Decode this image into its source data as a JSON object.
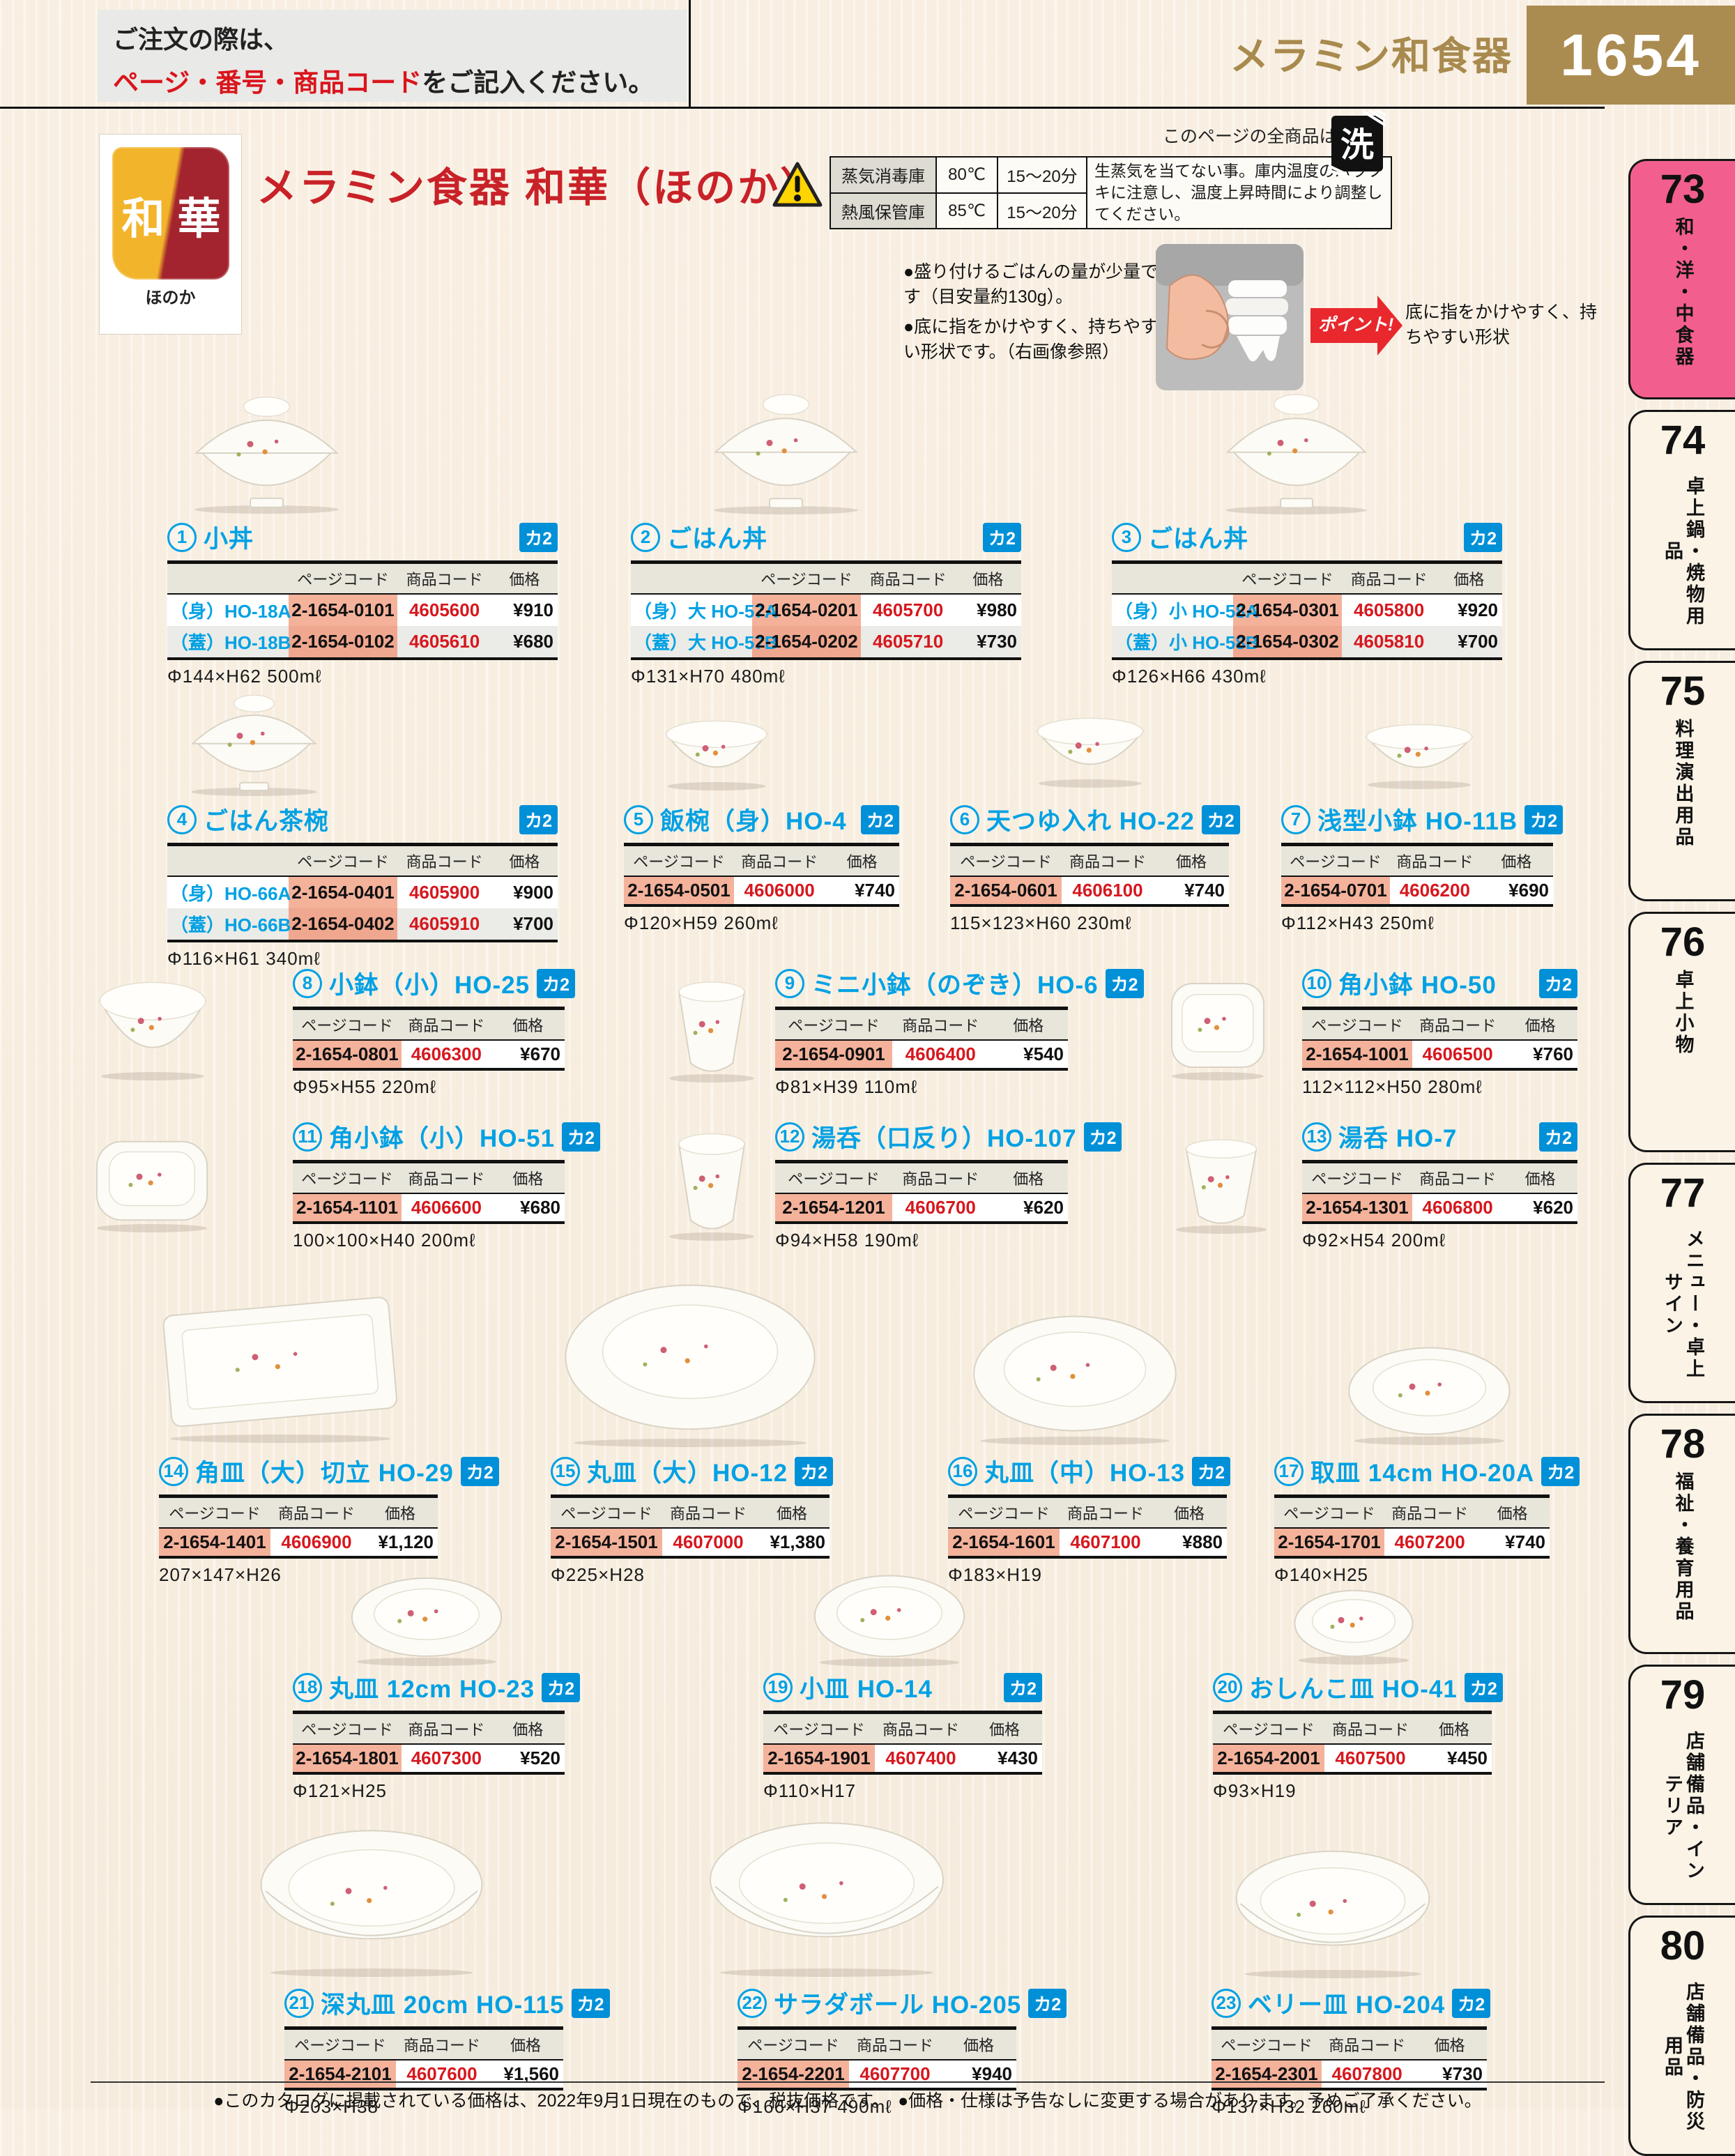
{
  "page": {
    "order_note_line1": "ご注文の際は、",
    "order_note_red": "ページ・番号・商品コード",
    "order_note_suffix": "をご記入ください。",
    "category_title": "メラミン和食器",
    "page_number": "1654",
    "all_products_note": "このページの全商品は",
    "wash_icon_label": "洗"
  },
  "header": {
    "brand_logo": {
      "kanji1": "和",
      "kanji2": "華",
      "sub": "ほのか"
    },
    "series_title": "メラミン食器 和華（ほのか）",
    "warning_mark": "!",
    "care_table": {
      "rows": [
        {
          "label": "蒸気消毒庫",
          "temp": "80℃",
          "time": "15〜20分"
        },
        {
          "label": "熱風保管庫",
          "temp": "85℃",
          "time": "15〜20分"
        }
      ],
      "note": "生蒸気を当てない事。庫内温度のバラツキに注意し、温度上昇時間により調整してください。"
    },
    "bullets": [
      "●盛り付けるごはんの量が少量です（目安量約130g）。",
      "●底に指をかけやすく、持ちやすい形状です。（右画像参照）"
    ],
    "point_label": "ポイント!",
    "point_text": "底に指をかけやすく、持ちやすい形状"
  },
  "sidebar": [
    {
      "number": "73",
      "label": "和・洋・中食器",
      "active": true
    },
    {
      "number": "74",
      "label": "卓上鍋・焼物用品",
      "active": false
    },
    {
      "number": "75",
      "label": "料理演出用品",
      "active": false
    },
    {
      "number": "76",
      "label": "卓上小物",
      "active": false
    },
    {
      "number": "77",
      "label": "メニュー・卓上サイン",
      "active": false
    },
    {
      "number": "78",
      "label": "福祉・養育用品",
      "active": false
    },
    {
      "number": "79",
      "label": "店舗備品・インテリア",
      "active": false
    },
    {
      "number": "80",
      "label": "店舗備品・防災用品",
      "active": false
    }
  ],
  "table_headers": {
    "page_code": "ページコード",
    "item_code": "商品コード",
    "price": "価格"
  },
  "badge": "カ2",
  "products": [
    {
      "number": "1",
      "name": "小丼",
      "rows": [
        {
          "variant": "（身）HO-18A",
          "page_code": "2-1654-0101",
          "item_code": "4605600",
          "price": "¥910"
        },
        {
          "variant": "（蓋）HO-18B",
          "page_code": "2-1654-0102",
          "item_code": "4605610",
          "price": "¥680"
        }
      ],
      "dims": "Φ144×H62 500mℓ"
    },
    {
      "number": "2",
      "name": "ごはん丼",
      "rows": [
        {
          "variant": "（身）大 HO-57A",
          "page_code": "2-1654-0201",
          "item_code": "4605700",
          "price": "¥980"
        },
        {
          "variant": "（蓋）大 HO-57B",
          "page_code": "2-1654-0202",
          "item_code": "4605710",
          "price": "¥730"
        }
      ],
      "dims": "Φ131×H70 480mℓ"
    },
    {
      "number": "3",
      "name": "ごはん丼",
      "rows": [
        {
          "variant": "（身）小 HO-58A",
          "page_code": "2-1654-0301",
          "item_code": "4605800",
          "price": "¥920"
        },
        {
          "variant": "（蓋）小 HO-58B",
          "page_code": "2-1654-0302",
          "item_code": "4605810",
          "price": "¥700"
        }
      ],
      "dims": "Φ126×H66 430mℓ"
    },
    {
      "number": "4",
      "name": "ごはん茶椀",
      "rows": [
        {
          "variant": "（身）HO-66A",
          "page_code": "2-1654-0401",
          "item_code": "4605900",
          "price": "¥900"
        },
        {
          "variant": "（蓋）HO-66B",
          "page_code": "2-1654-0402",
          "item_code": "4605910",
          "price": "¥700"
        }
      ],
      "dims": "Φ116×H61 340mℓ"
    },
    {
      "number": "5",
      "name": "飯椀（身）HO-4",
      "rows": [
        {
          "variant": "",
          "page_code": "2-1654-0501",
          "item_code": "4606000",
          "price": "¥740"
        }
      ],
      "dims": "Φ120×H59 260mℓ"
    },
    {
      "number": "6",
      "name": "天つゆ入れ HO-22",
      "rows": [
        {
          "variant": "",
          "page_code": "2-1654-0601",
          "item_code": "4606100",
          "price": "¥740"
        }
      ],
      "dims": "115×123×H60 230mℓ"
    },
    {
      "number": "7",
      "name": "浅型小鉢 HO-11B",
      "rows": [
        {
          "variant": "",
          "page_code": "2-1654-0701",
          "item_code": "4606200",
          "price": "¥690"
        }
      ],
      "dims": "Φ112×H43 250mℓ"
    },
    {
      "number": "8",
      "name": "小鉢（小）HO-25",
      "rows": [
        {
          "variant": "",
          "page_code": "2-1654-0801",
          "item_code": "4606300",
          "price": "¥670"
        }
      ],
      "dims": "Φ95×H55 220mℓ"
    },
    {
      "number": "9",
      "name": "ミニ小鉢（のぞき）HO-6",
      "rows": [
        {
          "variant": "",
          "page_code": "2-1654-0901",
          "item_code": "4606400",
          "price": "¥540"
        }
      ],
      "dims": "Φ81×H39 110mℓ"
    },
    {
      "number": "10",
      "name": "角小鉢 HO-50",
      "rows": [
        {
          "variant": "",
          "page_code": "2-1654-1001",
          "item_code": "4606500",
          "price": "¥760"
        }
      ],
      "dims": "112×112×H50 280mℓ"
    },
    {
      "number": "11",
      "name": "角小鉢（小）HO-51",
      "rows": [
        {
          "variant": "",
          "page_code": "2-1654-1101",
          "item_code": "4606600",
          "price": "¥680"
        }
      ],
      "dims": "100×100×H40 200mℓ"
    },
    {
      "number": "12",
      "name": "湯呑（口反り）HO-107",
      "rows": [
        {
          "variant": "",
          "page_code": "2-1654-1201",
          "item_code": "4606700",
          "price": "¥620"
        }
      ],
      "dims": "Φ94×H58 190mℓ"
    },
    {
      "number": "13",
      "name": "湯呑 HO-7",
      "rows": [
        {
          "variant": "",
          "page_code": "2-1654-1301",
          "item_code": "4606800",
          "price": "¥620"
        }
      ],
      "dims": "Φ92×H54 200mℓ"
    },
    {
      "number": "14",
      "name": "角皿（大）切立 HO-29",
      "rows": [
        {
          "variant": "",
          "page_code": "2-1654-1401",
          "item_code": "4606900",
          "price": "¥1,120"
        }
      ],
      "dims": "207×147×H26"
    },
    {
      "number": "15",
      "name": "丸皿（大）HO-12",
      "rows": [
        {
          "variant": "",
          "page_code": "2-1654-1501",
          "item_code": "4607000",
          "price": "¥1,380"
        }
      ],
      "dims": "Φ225×H28"
    },
    {
      "number": "16",
      "name": "丸皿（中）HO-13",
      "rows": [
        {
          "variant": "",
          "page_code": "2-1654-1601",
          "item_code": "4607100",
          "price": "¥880"
        }
      ],
      "dims": "Φ183×H19"
    },
    {
      "number": "17",
      "name": "取皿 14cm HO-20A",
      "rows": [
        {
          "variant": "",
          "page_code": "2-1654-1701",
          "item_code": "4607200",
          "price": "¥740"
        }
      ],
      "dims": "Φ140×H25"
    },
    {
      "number": "18",
      "name": "丸皿 12cm HO-23",
      "rows": [
        {
          "variant": "",
          "page_code": "2-1654-1801",
          "item_code": "4607300",
          "price": "¥520"
        }
      ],
      "dims": "Φ121×H25"
    },
    {
      "number": "19",
      "name": "小皿 HO-14",
      "rows": [
        {
          "variant": "",
          "page_code": "2-1654-1901",
          "item_code": "4607400",
          "price": "¥430"
        }
      ],
      "dims": "Φ110×H17"
    },
    {
      "number": "20",
      "name": "おしんこ皿 HO-41",
      "rows": [
        {
          "variant": "",
          "page_code": "2-1654-2001",
          "item_code": "4607500",
          "price": "¥450"
        }
      ],
      "dims": "Φ93×H19"
    },
    {
      "number": "21",
      "name": "深丸皿 20cm HO-115",
      "rows": [
        {
          "variant": "",
          "page_code": "2-1654-2101",
          "item_code": "4607600",
          "price": "¥1,560"
        }
      ],
      "dims": "Φ203×H38"
    },
    {
      "number": "22",
      "name": "サラダボール HO-205",
      "rows": [
        {
          "variant": "",
          "page_code": "2-1654-2201",
          "item_code": "4607700",
          "price": "¥940"
        }
      ],
      "dims": "Φ166×H37 490mℓ"
    },
    {
      "number": "23",
      "name": "ベリー皿 HO-204",
      "rows": [
        {
          "variant": "",
          "page_code": "2-1654-2301",
          "item_code": "4607800",
          "price": "¥730"
        }
      ],
      "dims": "Φ137×H32 260mℓ"
    }
  ],
  "footer": "●このカタログに掲載されている価格は、2022年9月1日現在のもので、税抜価格です。　●価格・仕様は予告なしに変更する場合があります。予めご了承ください。"
}
